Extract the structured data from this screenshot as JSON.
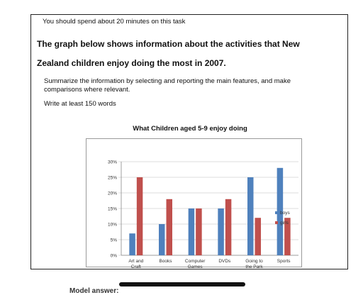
{
  "task": {
    "intro": "You should spend about 20 minutes on this task",
    "heading_line1": "The graph below shows information about the activities that New",
    "heading_line2": "Zealand children enjoy doing the most in 2007.",
    "instruction": "Summarize the information by selecting and reporting the main features, and make comparisons where relevant.",
    "word_count": "Write at least 150 words"
  },
  "chart_data": {
    "type": "bar",
    "title": "What Children aged 5-9 enjoy doing",
    "categories": [
      [
        "Art and",
        "Craft"
      ],
      [
        "Books"
      ],
      [
        "Computer",
        "Games"
      ],
      [
        "DVDs"
      ],
      [
        "Going to",
        "the Park"
      ],
      [
        "Sports"
      ]
    ],
    "series": [
      {
        "name": "boys",
        "color": "#4F81BD",
        "values": [
          7,
          10,
          15,
          15,
          25,
          28
        ]
      },
      {
        "name": "girls",
        "color": "#C0504D",
        "values": [
          25,
          18,
          15,
          18,
          12,
          12
        ]
      }
    ],
    "ylim": [
      0,
      30
    ],
    "yticks": [
      "0%",
      "5%",
      "10%",
      "15%",
      "20%",
      "25%",
      "30%"
    ],
    "grid": true,
    "legend_position": "right"
  },
  "footer": {
    "peek_text": "Model answer:"
  }
}
